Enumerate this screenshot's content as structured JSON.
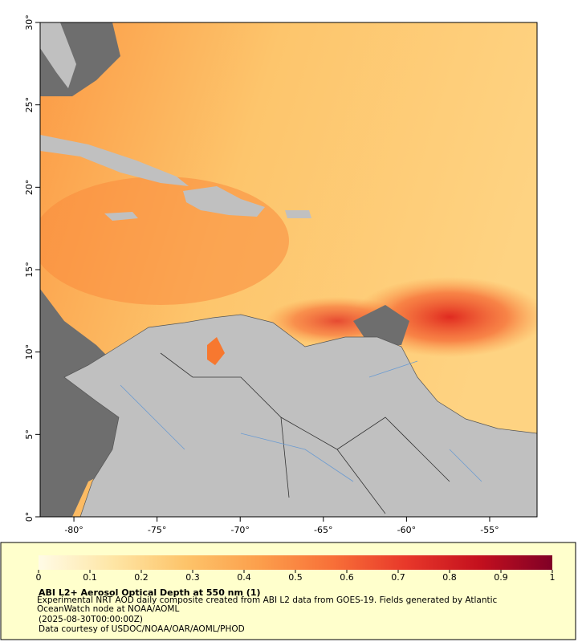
{
  "map": {
    "title": "ABI L2+ Aerosol Optical Depth at 550 nm (1)",
    "description": "Experimental NRT AOD daily composite created from ABI L2 data from GOES-19. Fields generated by Atlantic OceanWatch node at NOAA/AOML",
    "time": "(2025-08-30T00:00:00Z)",
    "credit": "Data courtesy of USDOC/NOAA/OAR/AOML/PHOD",
    "xlim": [
      -82.03,
      -52.15
    ],
    "ylim": [
      0,
      30
    ],
    "xticks": [
      {
        "value": -80,
        "label": "-80°"
      },
      {
        "value": -75,
        "label": "-75°"
      },
      {
        "value": -70,
        "label": "-70°"
      },
      {
        "value": -65,
        "label": "-65°"
      },
      {
        "value": -60,
        "label": "-60°"
      },
      {
        "value": -55,
        "label": "-55°"
      }
    ],
    "yticks": [
      {
        "value": 0,
        "label": "0°"
      },
      {
        "value": 5,
        "label": "5°"
      },
      {
        "value": 10,
        "label": "10°"
      },
      {
        "value": 15,
        "label": "15°"
      },
      {
        "value": 20,
        "label": "20°"
      },
      {
        "value": 25,
        "label": "25°"
      },
      {
        "value": 30,
        "label": "30°"
      }
    ],
    "colorbar": {
      "range": [
        0,
        1
      ],
      "ticks": [
        0,
        0.1,
        0.2,
        0.3,
        0.4,
        0.5,
        0.6,
        0.7,
        0.8,
        0.9,
        1
      ],
      "colors": [
        "#fffbe6",
        "#fee6a6",
        "#fdc46a",
        "#fc9f4c",
        "#f87038",
        "#e8382a",
        "#c4101e",
        "#800026"
      ]
    }
  }
}
